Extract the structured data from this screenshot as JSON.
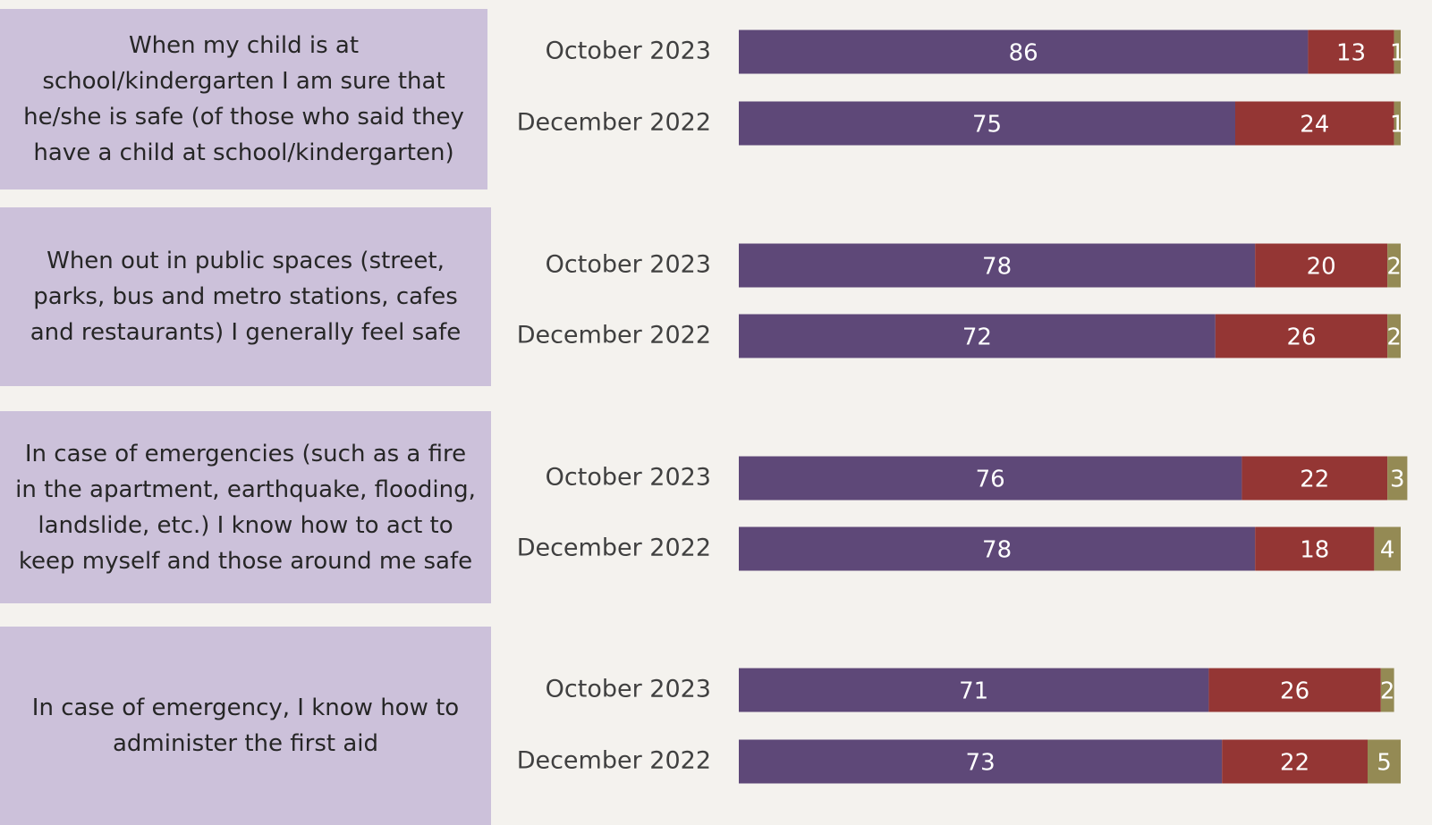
{
  "chart_data": {
    "type": "stacked-bar-horizontal",
    "groups": [
      "When my child is at school/kindergarten I am sure that he/she is safe (of those who said they have a child at school/kindergarten)",
      "When out in public spaces (street, parks, bus and metro stations, cafes and restaurants) I generally feel safe",
      "In case of emergencies (such as a fire in the apartment, earthquake, flooding, landslide, etc.) I know how to act to keep myself and those around me safe",
      "In case of emergency, I know how to administer the first aid"
    ],
    "categories": [
      "October 2023",
      "December 2022",
      "October 2023",
      "December 2022",
      "October 2023",
      "December 2022",
      "October 2023",
      "December 2022"
    ],
    "series": [
      {
        "color": "#5e4878",
        "values": [
          86,
          75,
          78,
          72,
          76,
          78,
          71,
          73
        ]
      },
      {
        "color": "#943634",
        "values": [
          13,
          24,
          20,
          26,
          22,
          18,
          26,
          22
        ]
      },
      {
        "color": "#948a54",
        "values": [
          1,
          1,
          2,
          2,
          3,
          4,
          2,
          5
        ]
      }
    ],
    "xlim": [
      0,
      100
    ]
  }
}
